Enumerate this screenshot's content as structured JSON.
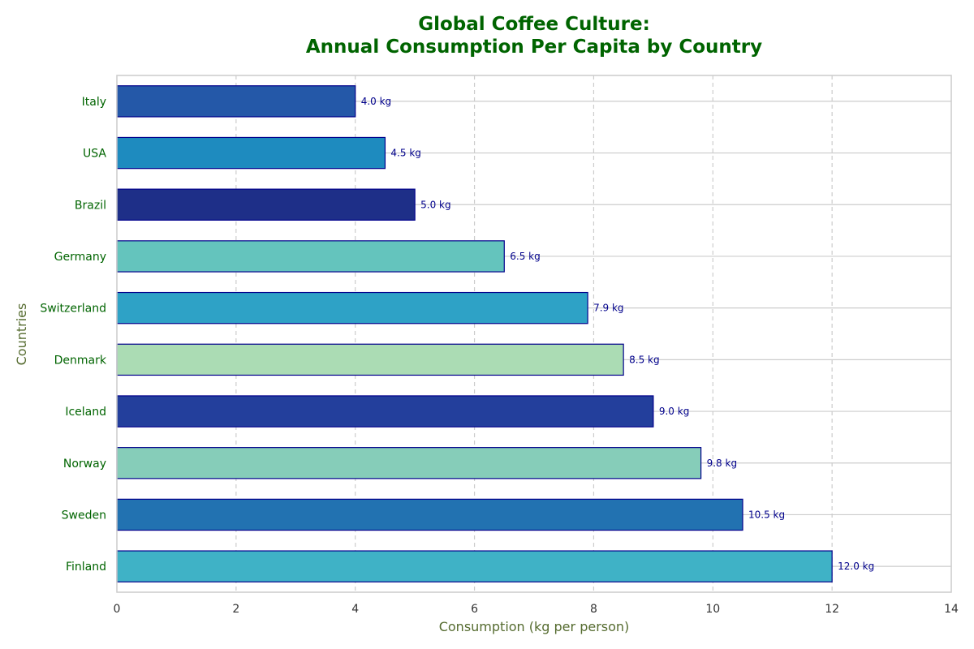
{
  "chart_data": {
    "type": "bar",
    "orientation": "horizontal",
    "title_lines": [
      "Global Coffee Culture:",
      "Annual Consumption Per Capita by Country"
    ],
    "xlabel": "Consumption (kg per person)",
    "ylabel": "Countries",
    "xlim": [
      0,
      14
    ],
    "xticks": [
      0,
      2,
      4,
      6,
      8,
      10,
      12,
      14
    ],
    "grid": true,
    "categories": [
      "Italy",
      "USA",
      "Brazil",
      "Germany",
      "Switzerland",
      "Denmark",
      "Iceland",
      "Norway",
      "Sweden",
      "Finland"
    ],
    "values": [
      4.0,
      4.5,
      5.0,
      6.5,
      7.9,
      8.5,
      9.0,
      9.8,
      10.5,
      12.0
    ],
    "value_labels": [
      "4.0 kg",
      "4.5 kg",
      "5.0 kg",
      "6.5 kg",
      "7.9 kg",
      "8.5 kg",
      "9.0 kg",
      "9.8 kg",
      "10.5 kg",
      "12.0 kg"
    ],
    "colors": [
      "#2458a8",
      "#1e8bbf",
      "#1e2f88",
      "#64c4bd",
      "#2ea2c6",
      "#abdcb4",
      "#233f9c",
      "#86cdb9",
      "#2272b1",
      "#3fb2c6"
    ],
    "bar_edge_color": "#00008b",
    "title_color": "#006400",
    "tick_label_color": "#006400",
    "axis_label_color": "#556b2f",
    "value_label_color": "#00008b"
  }
}
